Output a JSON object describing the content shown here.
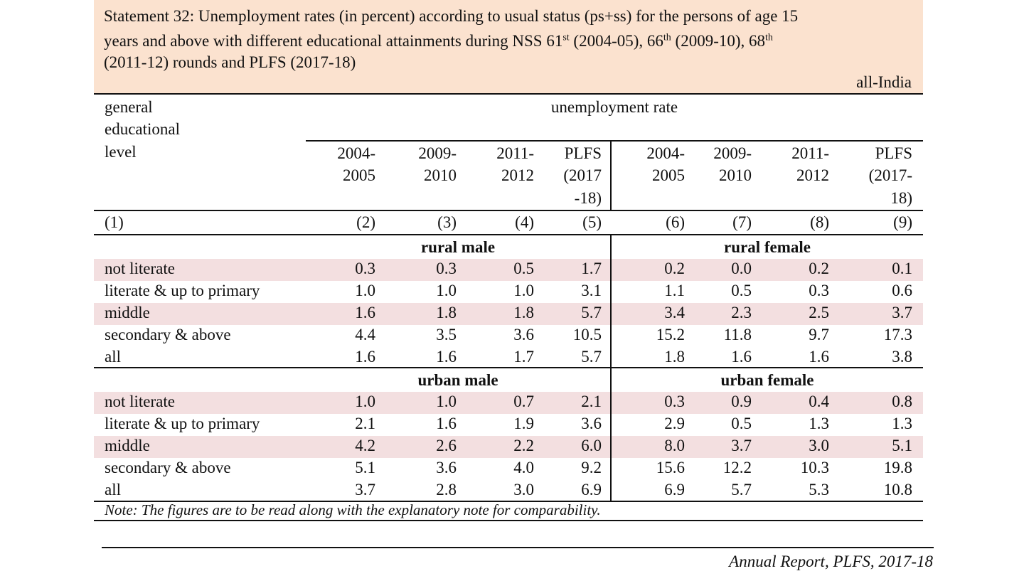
{
  "title": {
    "line1": "Statement 32:  Unemployment rates (in percent) according to usual status (ps+ss) for the persons of age 15",
    "line2_pre": "years and above with different educational attainments during  NSS 61",
    "sup1": "st",
    "line2_mid1": " (2004-05), 66",
    "sup2": "th",
    "line2_mid2": " (2009-10), 68",
    "sup3": "th",
    "line3": "(2011-12) rounds and PLFS (2017-18)",
    "region": "all-India"
  },
  "header": {
    "col1_l1": "general",
    "col1_l2": "educational",
    "col1_l3": "level",
    "group": "unemployment rate",
    "years": [
      {
        "l1": "2004-",
        "l2": "2005",
        "l3": ""
      },
      {
        "l1": "2009-",
        "l2": "2010",
        "l3": ""
      },
      {
        "l1": "2011-",
        "l2": "2012",
        "l3": ""
      },
      {
        "l1": "PLFS",
        "l2": "(2017",
        "l3": "-18)"
      },
      {
        "l1": "2004-",
        "l2": "2005",
        "l3": ""
      },
      {
        "l1": "2009-",
        "l2": "2010",
        "l3": ""
      },
      {
        "l1": "2011-",
        "l2": "2012",
        "l3": ""
      },
      {
        "l1": "PLFS",
        "l2": "(2017-",
        "l3": "18)"
      }
    ],
    "col_numbers": [
      "(1)",
      "(2)",
      "(3)",
      "(4)",
      "(5)",
      "(6)",
      "(7)",
      "(8)",
      "(9)"
    ]
  },
  "sections": [
    {
      "left_label": "rural male",
      "right_label": "rural female",
      "rows": [
        {
          "label": "not  literate",
          "values": [
            "0.3",
            "0.3",
            "0.5",
            "1.7",
            "0.2",
            "0.0",
            "0.2",
            "0.1"
          ]
        },
        {
          "label": "literate & up to primary",
          "values": [
            "1.0",
            "1.0",
            "1.0",
            "3.1",
            "1.1",
            "0.5",
            "0.3",
            "0.6"
          ]
        },
        {
          "label": "middle",
          "values": [
            "1.6",
            "1.8",
            "1.8",
            "5.7",
            "3.4",
            "2.3",
            "2.5",
            "3.7"
          ]
        },
        {
          "label": "secondary & above",
          "values": [
            "4.4",
            "3.5",
            "3.6",
            "10.5",
            "15.2",
            "11.8",
            "9.7",
            "17.3"
          ]
        },
        {
          "label": "all",
          "values": [
            "1.6",
            "1.6",
            "1.7",
            "5.7",
            "1.8",
            "1.6",
            "1.6",
            "3.8"
          ]
        }
      ]
    },
    {
      "left_label": "urban male",
      "right_label": "urban female",
      "rows": [
        {
          "label": "not  literate",
          "values": [
            "1.0",
            "1.0",
            "0.7",
            "2.1",
            "0.3",
            "0.9",
            "0.4",
            "0.8"
          ]
        },
        {
          "label": "literate & up to primary",
          "values": [
            "2.1",
            "1.6",
            "1.9",
            "3.6",
            "2.9",
            "0.5",
            "1.3",
            "1.3"
          ]
        },
        {
          "label": "middle",
          "values": [
            "4.2",
            "2.6",
            "2.2",
            "6.0",
            "8.0",
            "3.7",
            "3.0",
            "5.1"
          ]
        },
        {
          "label": "secondary & above",
          "values": [
            "5.1",
            "3.6",
            "4.0",
            "9.2",
            "15.6",
            "12.2",
            "10.3",
            "19.8"
          ]
        },
        {
          "label": "all",
          "values": [
            "3.7",
            "2.8",
            "3.0",
            "6.9",
            "6.9",
            "5.7",
            "5.3",
            "10.8"
          ]
        }
      ]
    }
  ],
  "note": "Note:  The figures are to be read along with the explanatory note for comparability.",
  "footer": "Annual Report, PLFS, 2017-18"
}
